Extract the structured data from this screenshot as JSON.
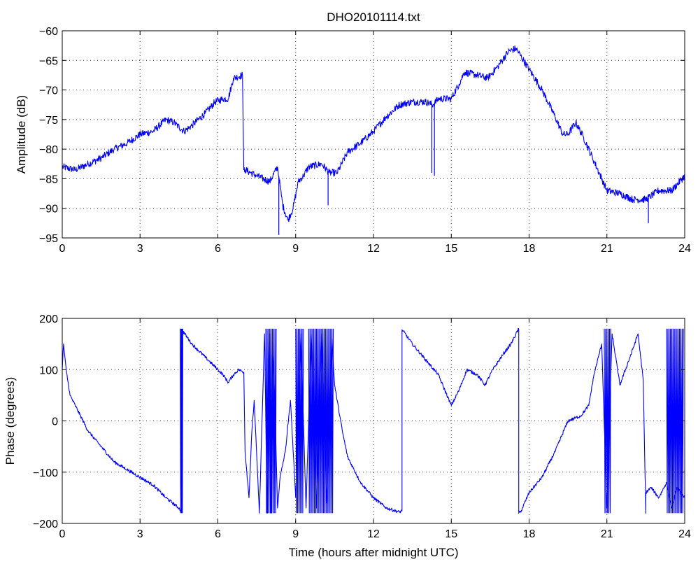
{
  "chart_data": [
    {
      "type": "line",
      "title": "DHO20101114.txt",
      "xlabel": "",
      "ylabel": "Amplitude (dB)",
      "xlim": [
        0,
        24
      ],
      "ylim": [
        -95,
        -60
      ],
      "xticks": [
        0,
        3,
        6,
        9,
        12,
        15,
        18,
        21,
        24
      ],
      "yticks": [
        -95,
        -90,
        -85,
        -80,
        -75,
        -70,
        -65,
        -60
      ],
      "xtick_labels": [
        "0",
        "3",
        "6",
        "9",
        "12",
        "15",
        "18",
        "21",
        "24"
      ],
      "ytick_labels": [
        "−95",
        "−90",
        "−85",
        "−80",
        "−75",
        "−70",
        "−65",
        "−60"
      ],
      "grid": true,
      "line_color": "#0000ff",
      "noise": 0.6,
      "series": [
        {
          "x": [
            0,
            0.5,
            1.0,
            1.5,
            2.0,
            2.5,
            3.0,
            3.5,
            4.0,
            4.3,
            4.7,
            5.0,
            5.5,
            5.9,
            6.2,
            6.4,
            6.6,
            6.95,
            7.0,
            7.05,
            7.5,
            8.0,
            8.3,
            8.5,
            8.7,
            8.9,
            9.1,
            9.3,
            9.5,
            10.0,
            10.3,
            10.6,
            11.0,
            11.5,
            12.0,
            12.5,
            13.0,
            13.5,
            14.0,
            14.3,
            14.5,
            15.0,
            15.3,
            15.5,
            16.0,
            16.4,
            16.8,
            17.2,
            17.5,
            18.0,
            18.5,
            19.0,
            19.3,
            19.5,
            19.8,
            20.1,
            20.5,
            21.0,
            21.5,
            22.0,
            22.5,
            23.0,
            23.5,
            24.0
          ],
          "y": [
            -83,
            -83.5,
            -82.5,
            -81.5,
            -80,
            -79,
            -77.5,
            -77,
            -75,
            -75.5,
            -77,
            -76,
            -74,
            -72,
            -71.5,
            -71.5,
            -68,
            -67.5,
            -83.5,
            -83.5,
            -84.5,
            -85.5,
            -83,
            -89.5,
            -92,
            -90,
            -85.5,
            -84.5,
            -83,
            -82.5,
            -84,
            -84,
            -80.5,
            -79,
            -77,
            -74.5,
            -72.5,
            -72,
            -72,
            -72.5,
            -71.5,
            -71.5,
            -69,
            -67,
            -67.5,
            -68,
            -66,
            -63.5,
            -63,
            -66.5,
            -70,
            -74.5,
            -77.5,
            -77.5,
            -75.5,
            -78,
            -82,
            -87,
            -87.5,
            -88.5,
            -88.5,
            -87,
            -87,
            -84.5
          ]
        }
      ],
      "spikes": [
        {
          "x": 8.35,
          "y": -94.5
        },
        {
          "x": 10.25,
          "y": -89.5
        },
        {
          "x": 14.25,
          "y": -84
        },
        {
          "x": 14.35,
          "y": -84.5
        },
        {
          "x": 22.6,
          "y": -92.5
        }
      ]
    },
    {
      "type": "line",
      "title": "",
      "xlabel": "Time (hours after midnight UTC)",
      "ylabel": "Phase (degrees)",
      "xlim": [
        0,
        24
      ],
      "ylim": [
        -200,
        200
      ],
      "xticks": [
        0,
        3,
        6,
        9,
        12,
        15,
        18,
        21,
        24
      ],
      "yticks": [
        -200,
        -100,
        0,
        100,
        200
      ],
      "xtick_labels": [
        "0",
        "3",
        "6",
        "9",
        "12",
        "15",
        "18",
        "21",
        "24"
      ],
      "ytick_labels": [
        "−200",
        "−100",
        "0",
        "100",
        "200"
      ],
      "grid": true,
      "line_color": "#0000ff",
      "noise": 3,
      "series": [
        {
          "x": [
            0,
            0.05,
            0.15,
            0.3,
            0.5,
            1,
            1.5,
            2,
            2.5,
            3,
            3.5,
            4,
            4.5,
            4.6,
            4.6,
            4.65,
            5,
            5.5,
            6,
            6.2,
            6.4,
            6.6,
            6.8,
            7.0,
            7.05,
            7.1,
            7.2,
            7.3,
            7.4,
            7.6,
            7.8,
            7.9,
            8.0,
            8.05,
            8.1,
            8.2,
            8.3,
            8.4,
            8.6,
            8.8,
            9.0,
            9.2,
            9.4,
            9.6,
            9.8,
            10.0,
            10.2,
            10.4,
            10.5,
            10.6,
            10.8,
            11.0,
            11.5,
            12.0,
            12.5,
            13.0,
            13.1,
            13.1,
            13.15,
            13.5,
            14.0,
            14.5,
            15.0,
            15.3,
            15.6,
            16.0,
            16.3,
            16.6,
            17.0,
            17.3,
            17.6,
            17.6,
            17.7,
            18.0,
            18.5,
            19.0,
            19.5,
            20.0,
            20.3,
            20.5,
            20.8,
            21.0,
            21.2,
            21.5,
            22.0,
            22.2,
            22.4,
            22.5,
            22.5,
            22.7,
            23.0,
            23.3,
            23.5,
            23.7,
            24.0
          ],
          "y": [
            100,
            150,
            100,
            50,
            30,
            -20,
            -50,
            -80,
            -95,
            -110,
            -125,
            -150,
            -170,
            -178,
            178,
            175,
            150,
            125,
            100,
            90,
            75,
            90,
            100,
            95,
            -60,
            -90,
            -150,
            -30,
            40,
            -180,
            170,
            -180,
            170,
            -180,
            130,
            30,
            -170,
            -110,
            -60,
            40,
            -150,
            170,
            -170,
            170,
            -170,
            170,
            -160,
            160,
            70,
            40,
            -20,
            -70,
            -120,
            -150,
            -170,
            -178,
            -175,
            178,
            175,
            150,
            120,
            90,
            30,
            60,
            100,
            90,
            70,
            100,
            130,
            150,
            180,
            -180,
            -175,
            -140,
            -110,
            -60,
            0,
            10,
            30,
            90,
            150,
            -170,
            170,
            70,
            140,
            170,
            80,
            -180,
            -140,
            -130,
            -150,
            -120,
            -170,
            -130,
            -150
          ]
        }
      ],
      "bands": [
        {
          "x0": 4.55,
          "x1": 4.65,
          "lo": -180,
          "hi": 180
        },
        {
          "x0": 7.85,
          "x1": 8.25,
          "lo": -180,
          "hi": 180
        },
        {
          "x0": 9.0,
          "x1": 9.3,
          "lo": -180,
          "hi": 180
        },
        {
          "x0": 9.5,
          "x1": 10.45,
          "lo": -180,
          "hi": 180
        },
        {
          "x0": 20.9,
          "x1": 21.15,
          "lo": -180,
          "hi": 180
        },
        {
          "x0": 23.3,
          "x1": 23.95,
          "lo": -180,
          "hi": 180
        }
      ]
    }
  ]
}
